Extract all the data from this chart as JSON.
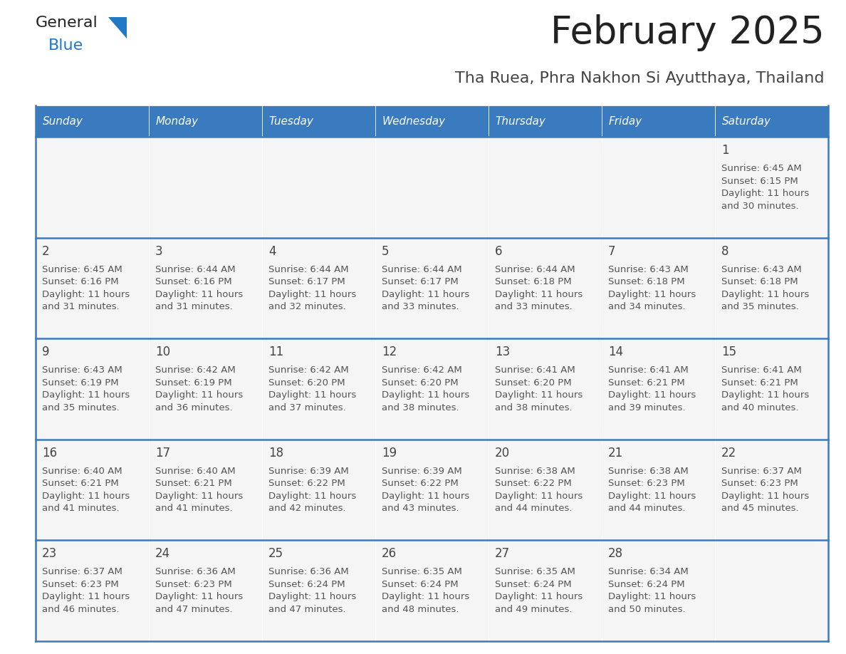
{
  "title": "February 2025",
  "subtitle": "Tha Ruea, Phra Nakhon Si Ayutthaya, Thailand",
  "days_of_week": [
    "Sunday",
    "Monday",
    "Tuesday",
    "Wednesday",
    "Thursday",
    "Friday",
    "Saturday"
  ],
  "header_bg": "#3a7abf",
  "header_text": "#ffffff",
  "cell_bg": "#f5f5f5",
  "divider_color": "#3a7abf",
  "text_color": "#444444",
  "small_text_color": "#555555",
  "calendar_data": [
    [
      null,
      null,
      null,
      null,
      null,
      null,
      {
        "day": "1",
        "sunrise": "6:45 AM",
        "sunset": "6:15 PM",
        "daylight_h": "11 hours",
        "daylight_m": "and 30 minutes."
      }
    ],
    [
      {
        "day": "2",
        "sunrise": "6:45 AM",
        "sunset": "6:16 PM",
        "daylight_h": "11 hours",
        "daylight_m": "and 31 minutes."
      },
      {
        "day": "3",
        "sunrise": "6:44 AM",
        "sunset": "6:16 PM",
        "daylight_h": "11 hours",
        "daylight_m": "and 31 minutes."
      },
      {
        "day": "4",
        "sunrise": "6:44 AM",
        "sunset": "6:17 PM",
        "daylight_h": "11 hours",
        "daylight_m": "and 32 minutes."
      },
      {
        "day": "5",
        "sunrise": "6:44 AM",
        "sunset": "6:17 PM",
        "daylight_h": "11 hours",
        "daylight_m": "and 33 minutes."
      },
      {
        "day": "6",
        "sunrise": "6:44 AM",
        "sunset": "6:18 PM",
        "daylight_h": "11 hours",
        "daylight_m": "and 33 minutes."
      },
      {
        "day": "7",
        "sunrise": "6:43 AM",
        "sunset": "6:18 PM",
        "daylight_h": "11 hours",
        "daylight_m": "and 34 minutes."
      },
      {
        "day": "8",
        "sunrise": "6:43 AM",
        "sunset": "6:18 PM",
        "daylight_h": "11 hours",
        "daylight_m": "and 35 minutes."
      }
    ],
    [
      {
        "day": "9",
        "sunrise": "6:43 AM",
        "sunset": "6:19 PM",
        "daylight_h": "11 hours",
        "daylight_m": "and 35 minutes."
      },
      {
        "day": "10",
        "sunrise": "6:42 AM",
        "sunset": "6:19 PM",
        "daylight_h": "11 hours",
        "daylight_m": "and 36 minutes."
      },
      {
        "day": "11",
        "sunrise": "6:42 AM",
        "sunset": "6:20 PM",
        "daylight_h": "11 hours",
        "daylight_m": "and 37 minutes."
      },
      {
        "day": "12",
        "sunrise": "6:42 AM",
        "sunset": "6:20 PM",
        "daylight_h": "11 hours",
        "daylight_m": "and 38 minutes."
      },
      {
        "day": "13",
        "sunrise": "6:41 AM",
        "sunset": "6:20 PM",
        "daylight_h": "11 hours",
        "daylight_m": "and 38 minutes."
      },
      {
        "day": "14",
        "sunrise": "6:41 AM",
        "sunset": "6:21 PM",
        "daylight_h": "11 hours",
        "daylight_m": "and 39 minutes."
      },
      {
        "day": "15",
        "sunrise": "6:41 AM",
        "sunset": "6:21 PM",
        "daylight_h": "11 hours",
        "daylight_m": "and 40 minutes."
      }
    ],
    [
      {
        "day": "16",
        "sunrise": "6:40 AM",
        "sunset": "6:21 PM",
        "daylight_h": "11 hours",
        "daylight_m": "and 41 minutes."
      },
      {
        "day": "17",
        "sunrise": "6:40 AM",
        "sunset": "6:21 PM",
        "daylight_h": "11 hours",
        "daylight_m": "and 41 minutes."
      },
      {
        "day": "18",
        "sunrise": "6:39 AM",
        "sunset": "6:22 PM",
        "daylight_h": "11 hours",
        "daylight_m": "and 42 minutes."
      },
      {
        "day": "19",
        "sunrise": "6:39 AM",
        "sunset": "6:22 PM",
        "daylight_h": "11 hours",
        "daylight_m": "and 43 minutes."
      },
      {
        "day": "20",
        "sunrise": "6:38 AM",
        "sunset": "6:22 PM",
        "daylight_h": "11 hours",
        "daylight_m": "and 44 minutes."
      },
      {
        "day": "21",
        "sunrise": "6:38 AM",
        "sunset": "6:23 PM",
        "daylight_h": "11 hours",
        "daylight_m": "and 44 minutes."
      },
      {
        "day": "22",
        "sunrise": "6:37 AM",
        "sunset": "6:23 PM",
        "daylight_h": "11 hours",
        "daylight_m": "and 45 minutes."
      }
    ],
    [
      {
        "day": "23",
        "sunrise": "6:37 AM",
        "sunset": "6:23 PM",
        "daylight_h": "11 hours",
        "daylight_m": "and 46 minutes."
      },
      {
        "day": "24",
        "sunrise": "6:36 AM",
        "sunset": "6:23 PM",
        "daylight_h": "11 hours",
        "daylight_m": "and 47 minutes."
      },
      {
        "day": "25",
        "sunrise": "6:36 AM",
        "sunset": "6:24 PM",
        "daylight_h": "11 hours",
        "daylight_m": "and 47 minutes."
      },
      {
        "day": "26",
        "sunrise": "6:35 AM",
        "sunset": "6:24 PM",
        "daylight_h": "11 hours",
        "daylight_m": "and 48 minutes."
      },
      {
        "day": "27",
        "sunrise": "6:35 AM",
        "sunset": "6:24 PM",
        "daylight_h": "11 hours",
        "daylight_m": "and 49 minutes."
      },
      {
        "day": "28",
        "sunrise": "6:34 AM",
        "sunset": "6:24 PM",
        "daylight_h": "11 hours",
        "daylight_m": "and 50 minutes."
      },
      null
    ]
  ],
  "logo_color_general": "#222222",
  "logo_color_blue": "#2178c4",
  "logo_triangle_color": "#2178c4"
}
